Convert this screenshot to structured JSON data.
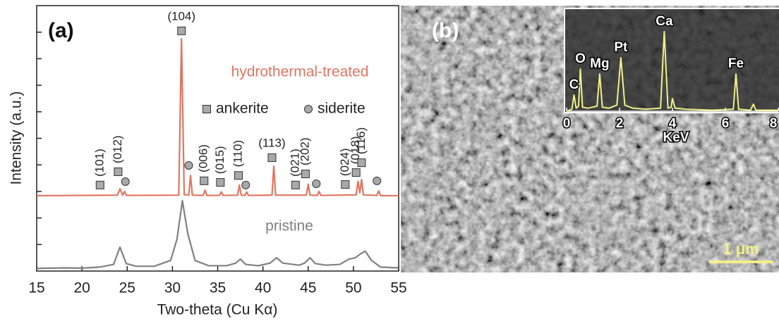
{
  "chart_data": [
    {
      "type": "line",
      "panel_label": "(a)",
      "xlabel": "Two-theta (Cu Kα)",
      "ylabel": "Intensity (a.u.)",
      "xlim": [
        15,
        55
      ],
      "xticks": [
        15,
        20,
        25,
        30,
        35,
        40,
        45,
        50,
        55
      ],
      "ylim": [
        0,
        100
      ],
      "yticks": [
        10,
        20,
        30,
        40,
        50,
        60,
        70,
        80,
        90
      ],
      "ytick_labels": false,
      "series": [
        {
          "name": "hydrothermal-treated",
          "color": "#e07662",
          "x": [
            15,
            20,
            23.9,
            24.2,
            24.5,
            24.7,
            24.9,
            30.7,
            31.0,
            31.3,
            31.8,
            32.0,
            32.2,
            33.4,
            33.6,
            33.8,
            35.2,
            35.4,
            35.6,
            37.2,
            37.4,
            37.6,
            38.0,
            38.2,
            38.4,
            41.0,
            41.2,
            41.4,
            44.8,
            45.0,
            45.2,
            46.0,
            46.2,
            46.4,
            50.3,
            50.5,
            50.7,
            50.9,
            51.1,
            52.6,
            52.8,
            53.0,
            55
          ],
          "values": [
            28.4,
            28.5,
            28.6,
            31,
            28.6,
            30,
            28.5,
            28.6,
            87.5,
            28.8,
            28.6,
            36,
            28.6,
            28.5,
            30.5,
            28.5,
            28.5,
            29.8,
            28.5,
            28.6,
            32.4,
            28.6,
            28.5,
            29.8,
            28.5,
            28.6,
            39.5,
            28.6,
            28.6,
            32.7,
            28.6,
            28.5,
            30.0,
            28.5,
            28.7,
            33.8,
            29.5,
            34.5,
            28.7,
            28.5,
            30.2,
            28.4,
            28.4
          ]
        },
        {
          "name": "pristine",
          "color": "#808080",
          "x": [
            15,
            18,
            20,
            22,
            23.5,
            24.2,
            24.9,
            26,
            28,
            29.8,
            30.5,
            31.1,
            31.7,
            32.5,
            34,
            36,
            37,
            37.5,
            38.1,
            39.5,
            40.8,
            41.5,
            42.2,
            44,
            44.6,
            45.2,
            45.8,
            47,
            48.5,
            49.5,
            50.2,
            50.8,
            51.3,
            52,
            53,
            55
          ],
          "values": [
            1,
            1.2,
            1.1,
            1.5,
            2.5,
            9,
            2.8,
            1.8,
            1.8,
            4,
            12,
            26.5,
            14,
            4,
            2,
            2,
            3,
            4.5,
            2.5,
            2,
            3,
            5,
            3,
            2.2,
            3,
            5,
            2.8,
            2.2,
            2.5,
            4.5,
            5,
            6.5,
            7.5,
            4,
            1.5,
            1.2
          ]
        }
      ],
      "markers": [
        {
          "name": "ankerite",
          "shape": "square",
          "points": [
            {
              "x": 22.0,
              "y": 32.4,
              "label": "(101)",
              "rotated": true
            },
            {
              "x": 24.0,
              "y": 37.4,
              "label": "(012)",
              "rotated": true
            },
            {
              "x": 31.0,
              "y": 90.5,
              "label": "(104)",
              "rotated": false
            },
            {
              "x": 33.5,
              "y": 34.0,
              "label": "(006)",
              "rotated": true
            },
            {
              "x": 35.3,
              "y": 33.4,
              "label": "(015)",
              "rotated": true
            },
            {
              "x": 37.3,
              "y": 36.0,
              "label": "(110)",
              "rotated": true
            },
            {
              "x": 41.0,
              "y": 42.7,
              "label": "(113)",
              "rotated": false
            },
            {
              "x": 43.6,
              "y": 32.4,
              "label": "(021)",
              "rotated": true
            },
            {
              "x": 44.7,
              "y": 36.6,
              "label": "(202)",
              "rotated": true
            },
            {
              "x": 49.1,
              "y": 32.6,
              "label": "(024)",
              "rotated": true
            },
            {
              "x": 50.3,
              "y": 37.1,
              "label": "(018)",
              "rotated": true
            },
            {
              "x": 50.9,
              "y": 40.8,
              "label": "(116)",
              "rotated": true
            }
          ]
        },
        {
          "name": "siderite",
          "shape": "circle",
          "points": [
            {
              "x": 24.8,
              "y": 33.7
            },
            {
              "x": 31.8,
              "y": 39.8
            },
            {
              "x": 38.1,
              "y": 32.4
            },
            {
              "x": 45.9,
              "y": 32.9
            },
            {
              "x": 52.6,
              "y": 34.0
            }
          ]
        }
      ]
    },
    {
      "type": "line",
      "panel_label": "(b)",
      "scale_bar": "1 μm",
      "xlabel": "KeV",
      "xlim": [
        0,
        8
      ],
      "xticks": [
        0,
        2,
        4,
        6,
        8
      ],
      "ylim": [
        0,
        100
      ],
      "series": [
        {
          "color": "#f2f08a",
          "x": [
            0,
            0.2,
            0.28,
            0.36,
            0.45,
            0.52,
            0.6,
            0.8,
            1.15,
            1.25,
            1.35,
            1.6,
            1.9,
            2.05,
            2.2,
            2.5,
            3.0,
            3.55,
            3.69,
            3.83,
            3.95,
            4.0,
            4.1,
            4.5,
            5.5,
            6.3,
            6.4,
            6.5,
            6.95,
            7.06,
            7.15,
            8
          ],
          "values": [
            0,
            2,
            16,
            3,
            5,
            41.7,
            4,
            3,
            5,
            36.8,
            4,
            3,
            6,
            52.8,
            6,
            3,
            2,
            3,
            78.5,
            3,
            4,
            12.5,
            3,
            2,
            1,
            2,
            36.8,
            2,
            1,
            7,
            1,
            1
          ]
        }
      ],
      "peaks": [
        {
          "label": "C",
          "x": 0.28,
          "y": 16
        },
        {
          "label": "O",
          "x": 0.52,
          "y": 41.7
        },
        {
          "label": "Mg",
          "x": 1.25,
          "y": 36.8
        },
        {
          "label": "Pt",
          "x": 2.05,
          "y": 52.8
        },
        {
          "label": "Ca",
          "x": 3.69,
          "y": 78.5
        },
        {
          "label": "Fe",
          "x": 6.4,
          "y": 36.8
        }
      ]
    }
  ]
}
